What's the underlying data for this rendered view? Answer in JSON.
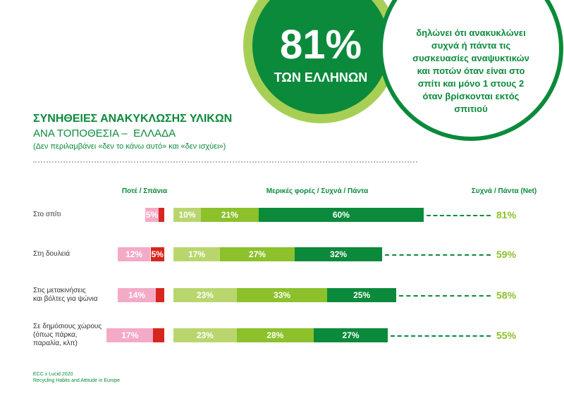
{
  "callout": {
    "big": "81%",
    "sub": "ΤΩΝ ΕΛΛΗΝΩΝ",
    "text": "δηλώνει ότι ανακυκλώνει συχνά ή πάντα τις συσκευασίες αναψυκτικών και ποτών όταν είναι στο σπίτι και μόνο 1 στους 2 όταν βρίσκονται εκτός σπιτιού"
  },
  "chart_data": {
    "type": "diverging-bar",
    "title": "ΣΥΝΗΘΕΙΕΣ ΑΝΑΚΥΚΛΩΣΗΣ ΥΛΙΚΩΝ",
    "subtitle": "ΑΝΑ ΤΟΠΟΘΕΣΙΑ –  ΕΛΛΑΔΑ",
    "note": "(Δεν περιλαμβάνει «δεν το κάνω αυτό» και «δεν ισχύει»)",
    "left_header": "Ποτέ / Σπάνια",
    "right_header": "Μερικές φορές / Συχνά / Πάντα",
    "net_header": "Συχνά / Πάντα (Net)",
    "categories": [
      "Στο σπίτι",
      "Στη δουλειά",
      "Στις μετακινήσεις\nκαι βόλτες για ψώνια",
      "Σε δημόσιους χώρους\n(όπως πάρκα,\nπαραλία, κλπ)"
    ],
    "series": [
      {
        "side": "left",
        "color": "#d7261e",
        "values": [
          2,
          5,
          3,
          4
        ],
        "value_labels": [
          "2%",
          "5%",
          "3%",
          "4%"
        ]
      },
      {
        "side": "left",
        "color": "#f4aac6",
        "values": [
          5,
          12,
          14,
          17
        ],
        "value_labels": [
          "5%",
          "12%",
          "14%",
          "17%"
        ]
      },
      {
        "side": "right",
        "color": "#b9d66e",
        "values": [
          10,
          17,
          23,
          23
        ],
        "value_labels": [
          "10%",
          "17%",
          "23%",
          "23%"
        ]
      },
      {
        "side": "right",
        "color": "#8cc12b",
        "values": [
          21,
          27,
          33,
          28
        ],
        "value_labels": [
          "21%",
          "27%",
          "33%",
          "28%"
        ]
      },
      {
        "side": "right",
        "color": "#0b8a3b",
        "values": [
          60,
          32,
          25,
          27
        ],
        "value_labels": [
          "60%",
          "32%",
          "25%",
          "27%"
        ]
      }
    ],
    "net": {
      "color": "#8cc12b",
      "values": [
        81,
        59,
        58,
        55
      ],
      "value_labels": [
        "81%",
        "59%",
        "58%",
        "55%"
      ]
    },
    "source": "ECC x Lucid 2020\nRecycling Habits and Attitude in Europe"
  }
}
